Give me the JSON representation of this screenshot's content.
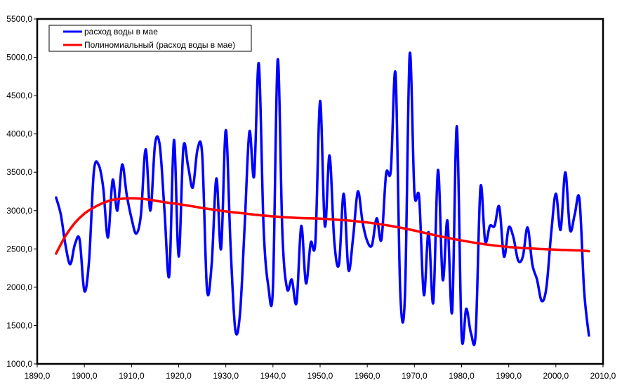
{
  "chart_data": {
    "type": "line",
    "title": "",
    "xlabel": "",
    "ylabel": "",
    "xlim": [
      1890,
      2010
    ],
    "ylim": [
      1000,
      5500
    ],
    "xticks": [
      1890,
      1900,
      1910,
      1920,
      1930,
      1940,
      1950,
      1960,
      1970,
      1980,
      1990,
      2000,
      2010
    ],
    "yticks": [
      1000,
      1500,
      2000,
      2500,
      3000,
      3500,
      4000,
      4500,
      5000,
      5500
    ],
    "xtick_labels": [
      "1890,0",
      "1900,0",
      "1910,0",
      "1920,0",
      "1930,0",
      "1940,0",
      "1950,0",
      "1960,0",
      "1970,0",
      "1980,0",
      "1990,0",
      "2000,0",
      "2010,0"
    ],
    "ytick_labels": [
      "1000,0",
      "1500,0",
      "2000,0",
      "2500,0",
      "3000,0",
      "3500,0",
      "4000,0",
      "4500,0",
      "5000,0",
      "5500,0"
    ],
    "grid": false,
    "legend_position": "top-left",
    "series": [
      {
        "name": "расход воды в мае",
        "color": "#0000FF",
        "x": [
          1894,
          1895,
          1896,
          1897,
          1898,
          1899,
          1900,
          1901,
          1902,
          1903,
          1904,
          1905,
          1906,
          1907,
          1908,
          1909,
          1910,
          1911,
          1912,
          1913,
          1914,
          1915,
          1916,
          1917,
          1918,
          1919,
          1920,
          1921,
          1922,
          1923,
          1924,
          1925,
          1926,
          1927,
          1928,
          1929,
          1930,
          1931,
          1932,
          1933,
          1934,
          1935,
          1936,
          1937,
          1938,
          1939,
          1940,
          1941,
          1942,
          1943,
          1944,
          1945,
          1946,
          1947,
          1948,
          1949,
          1950,
          1951,
          1952,
          1953,
          1954,
          1955,
          1956,
          1957,
          1958,
          1959,
          1960,
          1961,
          1962,
          1963,
          1964,
          1965,
          1966,
          1967,
          1968,
          1969,
          1970,
          1971,
          1972,
          1973,
          1974,
          1975,
          1976,
          1977,
          1978,
          1979,
          1980,
          1981,
          1982,
          1983,
          1984,
          1985,
          1986,
          1987,
          1988,
          1989,
          1990,
          1991,
          1992,
          1993,
          1994,
          1995,
          1996,
          1997,
          1998,
          1999,
          2000,
          2001,
          2002,
          2003,
          2004,
          2005,
          2006,
          2007
        ],
        "values": [
          3170,
          2950,
          2550,
          2300,
          2560,
          2620,
          1950,
          2350,
          3500,
          3600,
          3300,
          2650,
          3400,
          3000,
          3600,
          3200,
          2900,
          2700,
          2950,
          3800,
          3000,
          3870,
          3850,
          3000,
          2150,
          3920,
          2400,
          3820,
          3580,
          3300,
          3800,
          3720,
          1980,
          2300,
          3420,
          2500,
          4050,
          2550,
          1450,
          1650,
          2800,
          4030,
          3450,
          4920,
          2800,
          2020,
          2000,
          4970,
          2700,
          1980,
          2100,
          1800,
          2800,
          2050,
          2580,
          2600,
          4430,
          2800,
          3720,
          2600,
          2300,
          3220,
          2230,
          2650,
          3250,
          2850,
          2600,
          2550,
          2900,
          2620,
          3480,
          3530,
          4780,
          1930,
          1900,
          5040,
          3240,
          3170,
          1900,
          2720,
          1800,
          3530,
          2100,
          2870,
          1680,
          4100,
          1380,
          1720,
          1400,
          1400,
          3300,
          2600,
          2800,
          2800,
          3050,
          2400,
          2780,
          2650,
          2350,
          2400,
          2780,
          2300,
          2100,
          1820,
          2000,
          2700,
          3220,
          2750,
          3500,
          2750,
          2950,
          3150,
          1950,
          1370
        ]
      },
      {
        "name": "Полиномиальный (расход воды в мае)",
        "color": "#FF0000",
        "x": [
          1894,
          1896,
          1898,
          1900,
          1902,
          1904,
          1906,
          1908,
          1910,
          1912,
          1914,
          1916,
          1918,
          1920,
          1925,
          1930,
          1935,
          1940,
          1945,
          1950,
          1955,
          1960,
          1965,
          1970,
          1975,
          1980,
          1985,
          1990,
          1995,
          2000,
          2005,
          2007
        ],
        "values": [
          2440,
          2670,
          2840,
          2960,
          3040,
          3100,
          3140,
          3155,
          3160,
          3155,
          3140,
          3120,
          3100,
          3085,
          3035,
          2990,
          2955,
          2925,
          2905,
          2895,
          2875,
          2845,
          2800,
          2740,
          2670,
          2610,
          2560,
          2525,
          2505,
          2490,
          2480,
          2470
        ]
      }
    ]
  }
}
